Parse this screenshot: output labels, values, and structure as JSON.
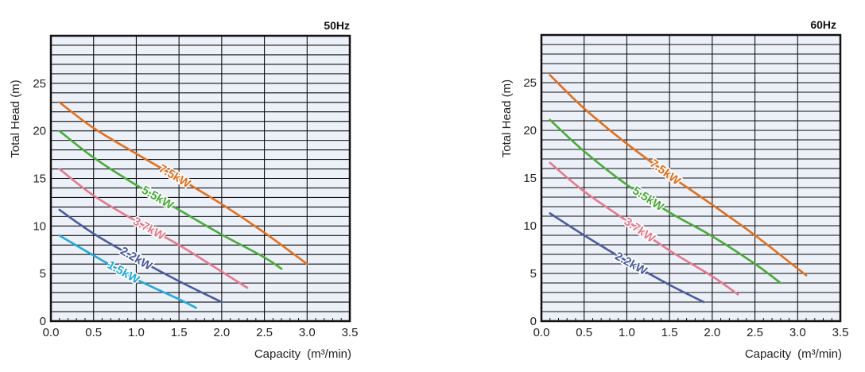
{
  "chart_data": [
    {
      "type": "line",
      "title": "50Hz",
      "xlabel": "Capacity",
      "xlabel_unit": "(m³/min)",
      "ylabel": "Total Head (m)",
      "xlim": [
        0,
        3.5
      ],
      "ylim": [
        0,
        30
      ],
      "x_ticks": [
        "0.0",
        "0.5",
        "1.0",
        "1.5",
        "2.0",
        "2.5",
        "3.0",
        "3.5"
      ],
      "y_ticks": [
        "0",
        "5",
        "10",
        "15",
        "20",
        "25"
      ],
      "grid": true,
      "background": "#ECF0F8",
      "series": [
        {
          "name": "7.5kW",
          "color": "#E0701E",
          "label_at": 1.45,
          "x": [
            0.1,
            0.5,
            1.0,
            1.5,
            2.0,
            2.5,
            3.0
          ],
          "y": [
            23.0,
            20.3,
            17.6,
            15.0,
            12.3,
            9.3,
            6.0
          ]
        },
        {
          "name": "5.5kW",
          "color": "#4AAA3C",
          "label_at": 1.25,
          "x": [
            0.1,
            0.5,
            1.0,
            1.5,
            2.0,
            2.5,
            2.7
          ],
          "y": [
            20.0,
            17.2,
            14.3,
            11.7,
            9.1,
            6.7,
            5.5
          ]
        },
        {
          "name": "3.7kW",
          "color": "#E27A8C",
          "label_at": 1.15,
          "x": [
            0.1,
            0.5,
            1.0,
            1.5,
            2.0,
            2.3
          ],
          "y": [
            16.0,
            13.2,
            10.5,
            8.0,
            5.2,
            3.5
          ]
        },
        {
          "name": "2.2kW",
          "color": "#4A5C9C",
          "label_at": 1.0,
          "x": [
            0.1,
            0.5,
            1.0,
            1.5,
            2.0
          ],
          "y": [
            11.7,
            9.2,
            6.6,
            4.2,
            2.0
          ]
        },
        {
          "name": "1.5kW",
          "color": "#22A8DA",
          "label_at": 0.85,
          "x": [
            0.1,
            0.5,
            1.0,
            1.5,
            1.7
          ],
          "y": [
            9.0,
            6.9,
            4.4,
            2.3,
            1.4
          ]
        }
      ]
    },
    {
      "type": "line",
      "title": "60Hz",
      "xlabel": "Capacity",
      "xlabel_unit": "(m³/min)",
      "ylabel": "Total Head (m)",
      "xlim": [
        0,
        3.5
      ],
      "ylim": [
        0,
        30
      ],
      "x_ticks": [
        "0.0",
        "0.5",
        "1.0",
        "1.5",
        "2.0",
        "2.5",
        "3.0",
        "3.5"
      ],
      "y_ticks": [
        "0",
        "5",
        "10",
        "15",
        "20",
        "25"
      ],
      "grid": true,
      "background": "#ECF0F8",
      "series": [
        {
          "name": "7.5kW",
          "color": "#E0701E",
          "label_at": 1.45,
          "x": [
            0.1,
            0.5,
            1.0,
            1.5,
            2.0,
            2.5,
            3.1
          ],
          "y": [
            25.8,
            22.3,
            18.6,
            15.3,
            12.2,
            9.0,
            4.8
          ]
        },
        {
          "name": "5.5kW",
          "color": "#4AAA3C",
          "label_at": 1.25,
          "x": [
            0.1,
            0.5,
            1.0,
            1.5,
            2.0,
            2.5,
            2.8
          ],
          "y": [
            21.1,
            17.8,
            14.3,
            11.4,
            8.9,
            6.0,
            4.0
          ]
        },
        {
          "name": "3.7kW",
          "color": "#E27A8C",
          "label_at": 1.15,
          "x": [
            0.1,
            0.5,
            1.0,
            1.5,
            2.0,
            2.3
          ],
          "y": [
            16.6,
            13.6,
            10.5,
            7.4,
            4.7,
            2.8
          ]
        },
        {
          "name": "2.2kW",
          "color": "#4A5C9C",
          "label_at": 1.05,
          "x": [
            0.1,
            0.5,
            1.0,
            1.5,
            1.9
          ],
          "y": [
            11.3,
            9.0,
            6.3,
            3.8,
            2.0
          ]
        }
      ]
    }
  ]
}
